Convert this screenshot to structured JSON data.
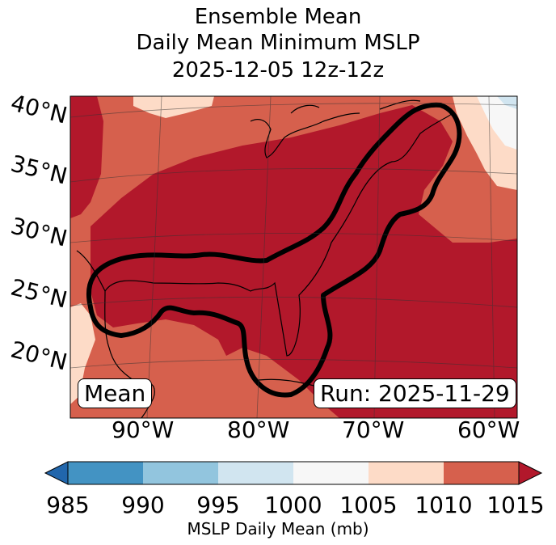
{
  "title": {
    "line1": "Ensemble Mean",
    "line2": "Daily Mean Minimum MSLP",
    "line3": "2025-12-05 12z-12z"
  },
  "map": {
    "lat_labels": [
      "40°N",
      "35°N",
      "30°N",
      "25°N",
      "20°N"
    ],
    "lon_labels": [
      "90°W",
      "80°W",
      "70°W",
      "60°W"
    ],
    "mode_label": "Mean",
    "run_label": "Run: 2025-11-29",
    "contour_color": "#000000",
    "colors": {
      "c985": "#2f7ab8",
      "c990": "#3d8cc2",
      "c995": "#92c5de",
      "c1000": "#d1e5f0",
      "c1005": "#f7f7f7",
      "c1010": "#fddbc7",
      "c1015": "#d6604d",
      "c_over": "#b2182b"
    }
  },
  "colorbar": {
    "ticks": [
      "985",
      "990",
      "995",
      "1000",
      "1005",
      "1010",
      "1015"
    ],
    "label": "MSLP Daily Mean (mb)",
    "bins": [
      {
        "range": "<985",
        "color": "#2166ac"
      },
      {
        "range": "985-990",
        "color": "#4393c3"
      },
      {
        "range": "990-995",
        "color": "#92c5de"
      },
      {
        "range": "995-1000",
        "color": "#d1e5f0"
      },
      {
        "range": "1000-1005",
        "color": "#f7f7f7"
      },
      {
        "range": "1005-1010",
        "color": "#fddbc7"
      },
      {
        "range": "1010-1015",
        "color": "#d6604d"
      },
      {
        "range": ">1015",
        "color": "#b2182b"
      }
    ]
  }
}
